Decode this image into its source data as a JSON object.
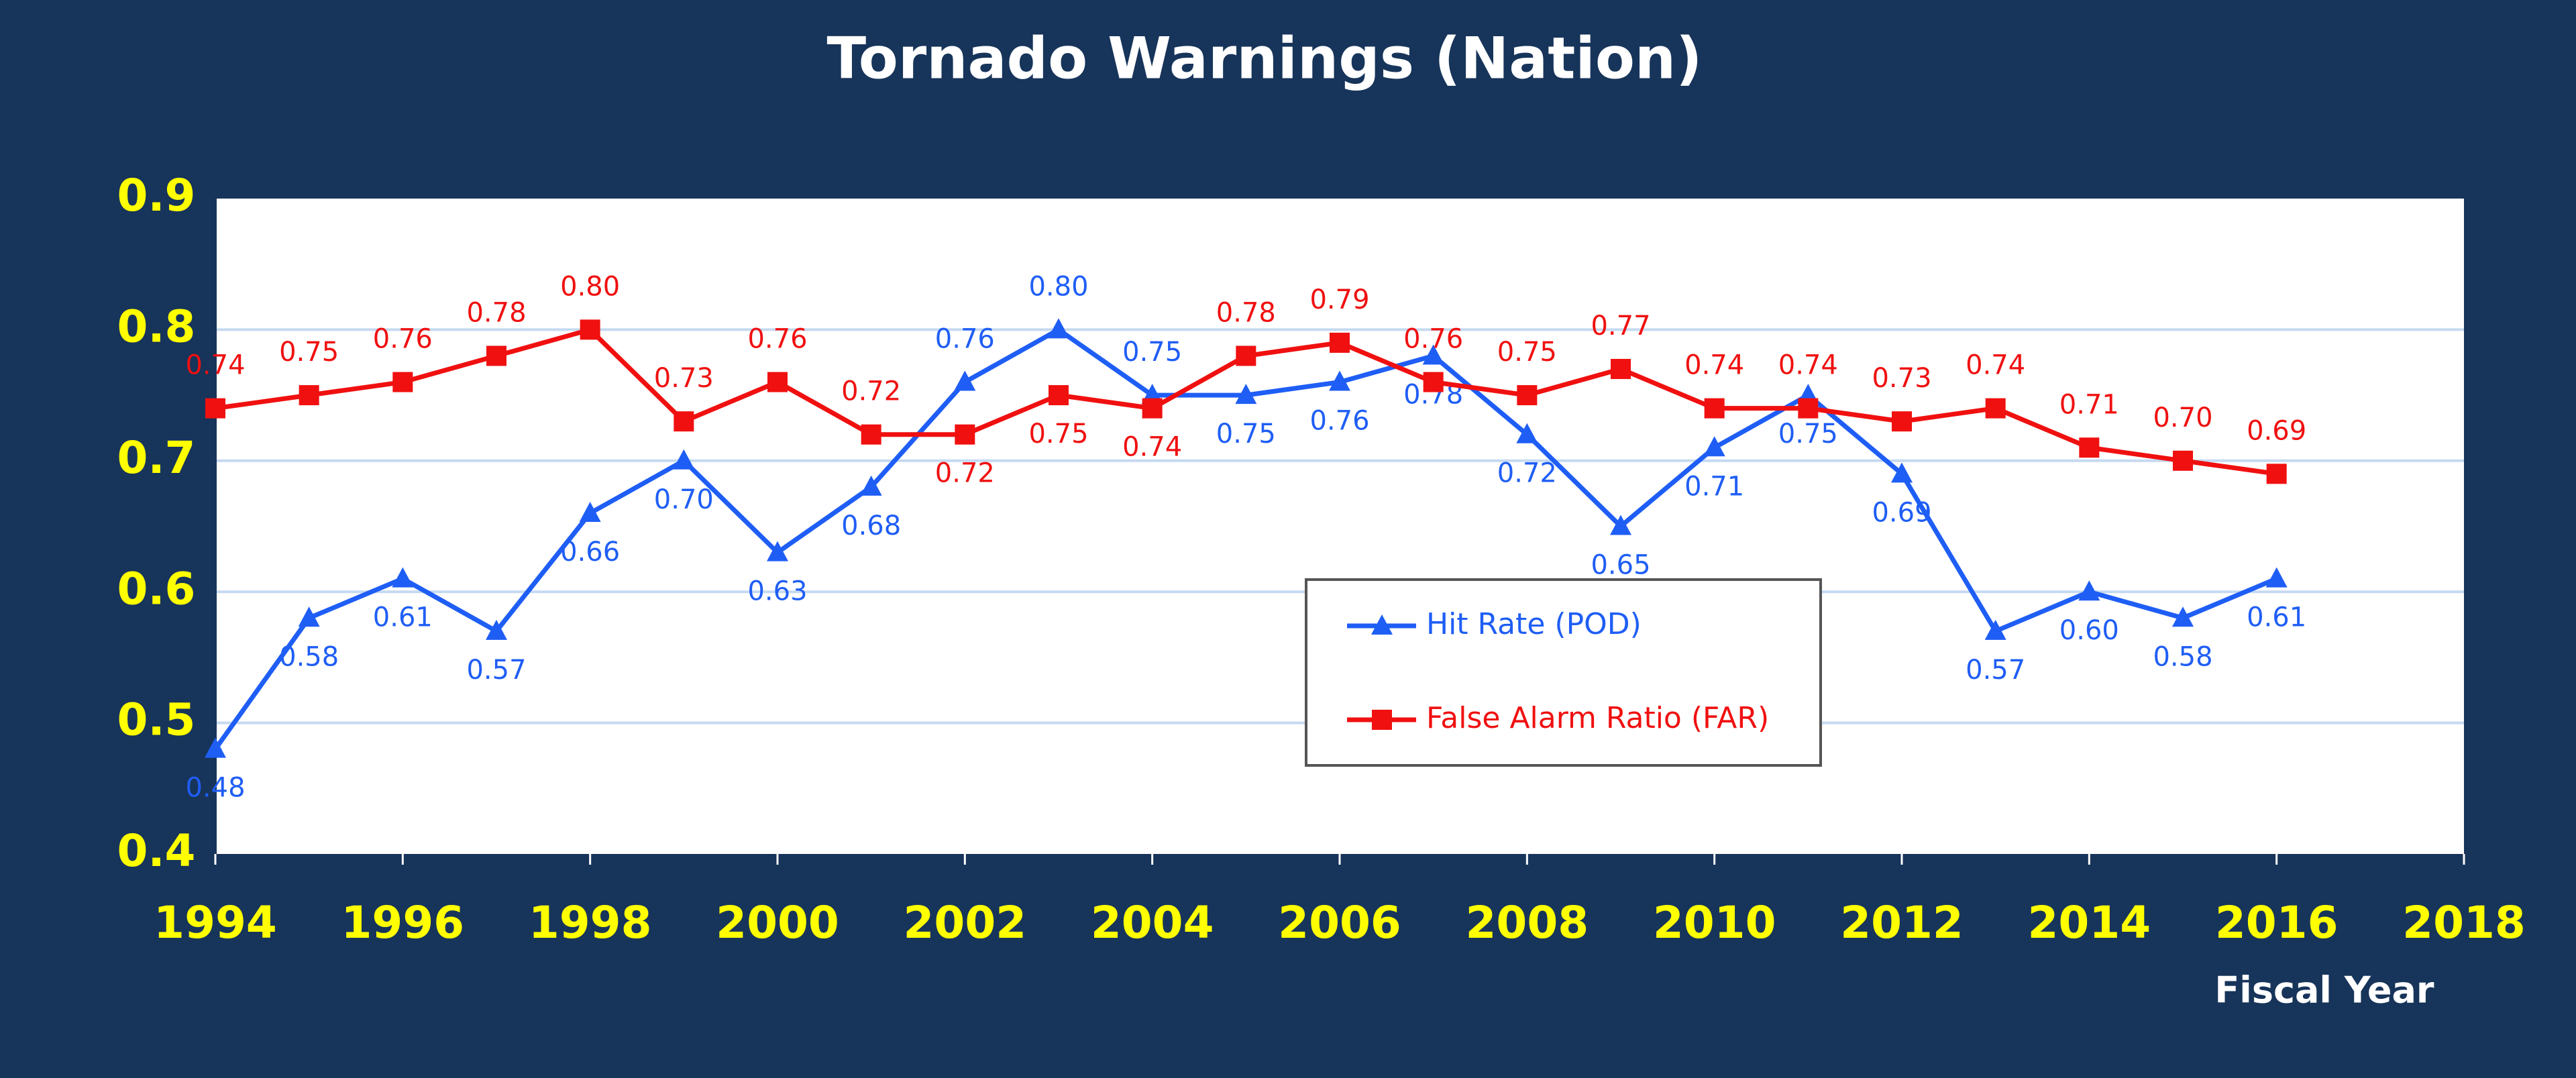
{
  "chart_data": {
    "type": "line",
    "title": "Tornado Warnings (Nation)",
    "x_label": "Fiscal Year",
    "x": [
      1994,
      1995,
      1996,
      1997,
      1998,
      1999,
      2000,
      2001,
      2002,
      2003,
      2004,
      2005,
      2006,
      2007,
      2008,
      2009,
      2010,
      2011,
      2012,
      2013,
      2014,
      2015,
      2016
    ],
    "series": [
      {
        "name": "Hit Rate (POD)",
        "color": "#1f5ef5",
        "marker": "triangle",
        "values": [
          0.48,
          0.58,
          0.61,
          0.57,
          0.66,
          0.7,
          0.63,
          0.68,
          0.76,
          0.8,
          0.75,
          0.75,
          0.76,
          0.78,
          0.72,
          0.65,
          0.71,
          0.75,
          0.69,
          0.57,
          0.6,
          0.58,
          0.61
        ],
        "value_labels": [
          "0.48",
          "0.58",
          "0.61",
          "0.57",
          "0.66",
          "0.70",
          "0.63",
          "0.68",
          "0.76",
          "0.80",
          "0.75",
          "0.75",
          "0.76",
          "0.78",
          "0.72",
          "0.65",
          "0.71",
          "0.75",
          "0.69",
          "0.57",
          "0.60",
          "0.58",
          "0.61"
        ]
      },
      {
        "name": "False Alarm Ratio (FAR)",
        "color": "#f01010",
        "marker": "square",
        "values": [
          0.74,
          0.75,
          0.76,
          0.78,
          0.8,
          0.73,
          0.76,
          0.72,
          0.72,
          0.75,
          0.74,
          0.78,
          0.79,
          0.76,
          0.75,
          0.77,
          0.74,
          0.74,
          0.73,
          0.74,
          0.71,
          0.7,
          0.69
        ],
        "value_labels": [
          "0.74",
          "0.75",
          "0.76",
          "0.78",
          "0.80",
          "0.73",
          "0.76",
          "0.72",
          "0.72",
          "0.75",
          "0.74",
          "0.78",
          "0.79",
          "0.76",
          "0.75",
          "0.77",
          "0.74",
          "0.74",
          "0.73",
          "0.74",
          "0.71",
          "0.70",
          "0.69"
        ]
      }
    ],
    "xlim": [
      1994,
      2018
    ],
    "xticks": [
      1994,
      1996,
      1998,
      2000,
      2002,
      2004,
      2006,
      2008,
      2010,
      2012,
      2014,
      2016,
      2018
    ],
    "ylim": [
      0.4,
      0.9
    ],
    "yticks": [
      0.4,
      0.5,
      0.6,
      0.7,
      0.8,
      0.9
    ],
    "grid": true
  }
}
